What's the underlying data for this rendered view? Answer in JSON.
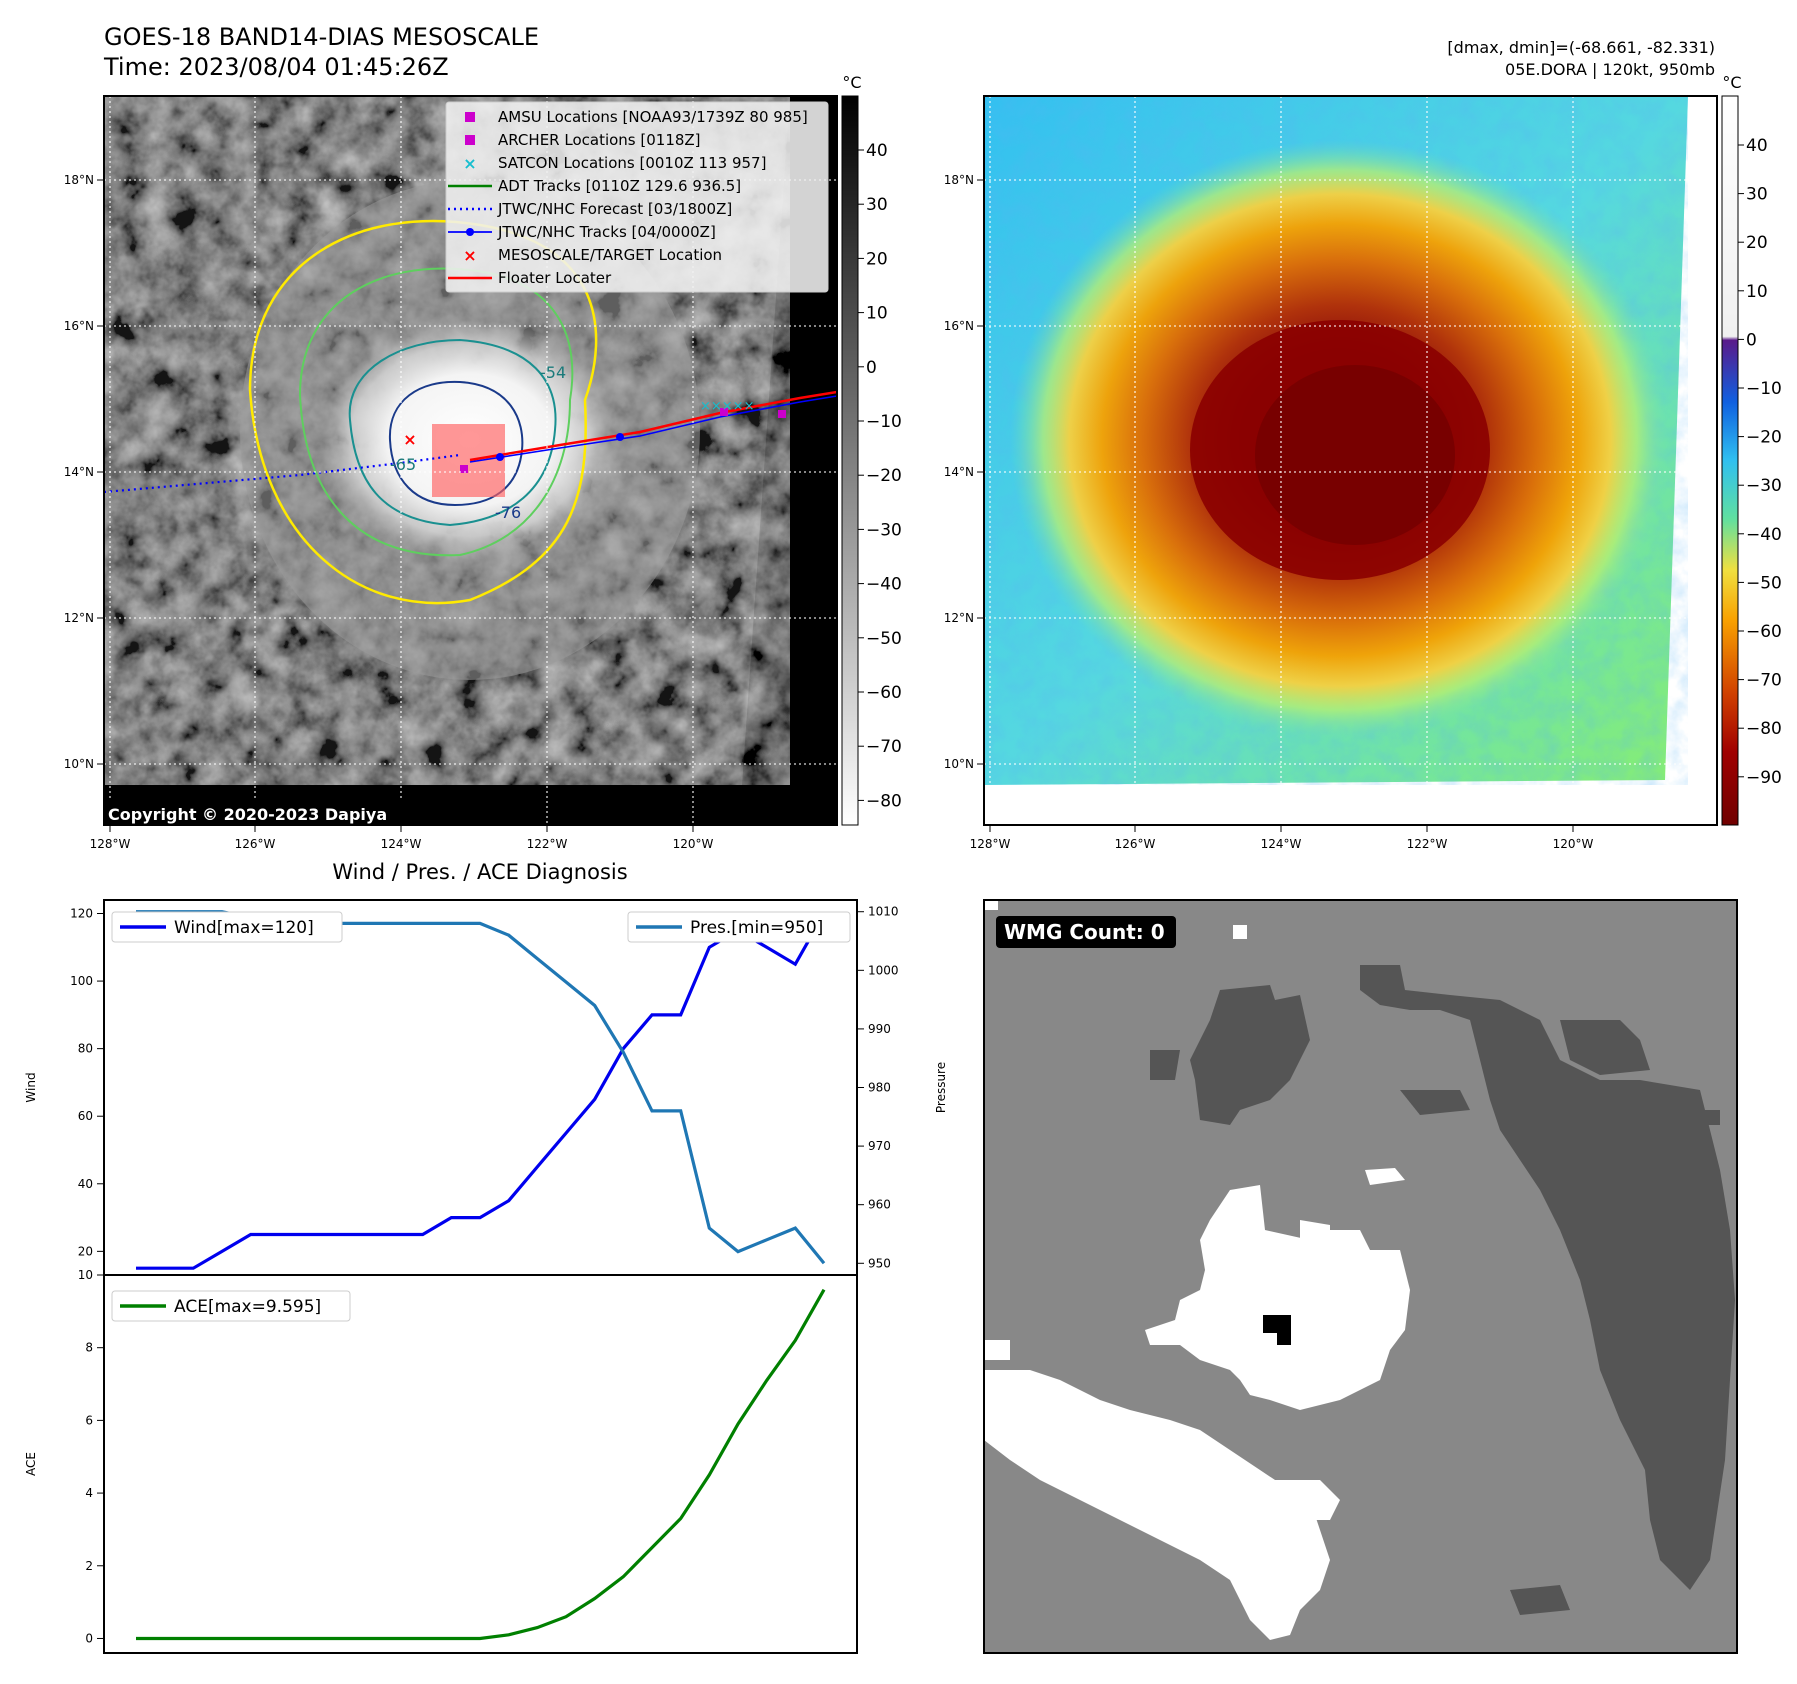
{
  "header": {
    "title": "GOES-18 BAND14-DIAS MESOSCALE",
    "time": "Time: 2023/08/04 01:45:26Z",
    "stats": "[dmax, dmin]=(-68.661, -82.331)",
    "storm": "05E.DORA | 120kt, 950mb"
  },
  "colors": {
    "wind": "#0000ee",
    "pressure": "#1f77b4",
    "ace": "#008000",
    "amsu": "#cc00cc",
    "archer": "#cc00cc",
    "satcon": "#17becf",
    "adt": "#008000",
    "forecast": "#0000ff",
    "tracks": "#0000ff",
    "target": "#ff0000",
    "floater": "#ff0000"
  },
  "map": {
    "lon_ticks": [
      "128°W",
      "126°W",
      "124°W",
      "122°W",
      "120°W"
    ],
    "lat_ticks": [
      "18°N",
      "16°N",
      "14°N",
      "12°N",
      "10°N"
    ],
    "copyright": "Copyright © 2020-2023 Dapiya",
    "contour_labels": [
      "-54",
      "-65",
      "-76"
    ]
  },
  "legend": {
    "items": [
      {
        "label": "AMSU Locations [NOAA93/1739Z 80 985]",
        "marker": "square",
        "color": "amsu"
      },
      {
        "label": "ARCHER Locations [0118Z]",
        "marker": "square",
        "color": "archer"
      },
      {
        "label": "SATCON Locations [0010Z 113 957]",
        "marker": "x",
        "color": "satcon"
      },
      {
        "label": "ADT Tracks [0110Z 129.6 936.5]",
        "marker": "line",
        "color": "adt"
      },
      {
        "label": "JTWC/NHC Forecast [03/1800Z]",
        "marker": "dotted",
        "color": "forecast"
      },
      {
        "label": "JTWC/NHC Tracks [04/0000Z]",
        "marker": "dotline",
        "color": "tracks"
      },
      {
        "label": "MESOSCALE/TARGET Location",
        "marker": "redx",
        "color": "target"
      },
      {
        "label": "Floater Locater",
        "marker": "line",
        "color": "floater"
      }
    ]
  },
  "colorbar_gray": {
    "unit": "°C",
    "ticks": [
      "40",
      "30",
      "20",
      "10",
      "0",
      "−10",
      "−20",
      "−30",
      "−40",
      "−50",
      "−60",
      "−70",
      "−80"
    ]
  },
  "colorbar_color": {
    "unit": "°C",
    "ticks": [
      "40",
      "30",
      "20",
      "10",
      "0",
      "−10",
      "−20",
      "−30",
      "−40",
      "−50",
      "−60",
      "−70",
      "−80",
      "−90"
    ]
  },
  "chart_data": [
    {
      "type": "line",
      "title": "Wind / Pres. / ACE Diagnosis",
      "ylabel": "Wind",
      "ylim": [
        13,
        124
      ],
      "yticks": [
        20,
        40,
        60,
        80,
        100,
        120
      ],
      "series": [
        {
          "name": "Wind[max=120]",
          "values": [
            15,
            15,
            15,
            20,
            25,
            25,
            25,
            25,
            25,
            25,
            25,
            30,
            30,
            35,
            45,
            55,
            65,
            80,
            90,
            90,
            110,
            115,
            110,
            105,
            120
          ]
        }
      ]
    },
    {
      "type": "line",
      "ylabel": "Pressure",
      "ylim": [
        948,
        1012
      ],
      "yticks": [
        950,
        960,
        970,
        980,
        990,
        1000,
        1010
      ],
      "series": [
        {
          "name": "Pres.[min=950]",
          "values": [
            1010,
            1010,
            1010,
            1010,
            1009,
            1009,
            1008,
            1008,
            1008,
            1008,
            1008,
            1008,
            1008,
            1006,
            1002,
            998,
            994,
            986,
            976,
            976,
            956,
            952,
            954,
            956,
            950
          ]
        }
      ]
    },
    {
      "type": "line",
      "ylabel": "ACE",
      "ylim": [
        -0.4,
        10
      ],
      "yticks": [
        0,
        2,
        4,
        6,
        8,
        10
      ],
      "series": [
        {
          "name": "ACE[max=9.595]",
          "values": [
            0,
            0,
            0,
            0,
            0,
            0,
            0,
            0,
            0,
            0,
            0,
            0,
            0,
            0.1,
            0.3,
            0.6,
            1.1,
            1.7,
            2.5,
            3.3,
            4.5,
            5.9,
            7.1,
            8.2,
            9.595
          ]
        }
      ]
    }
  ],
  "wmg": {
    "label": "WMG Count: 0"
  }
}
